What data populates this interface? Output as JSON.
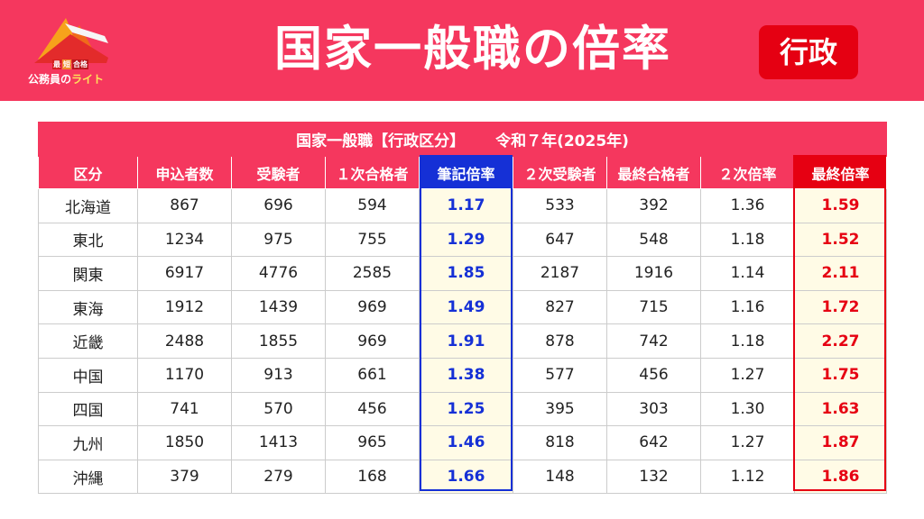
{
  "header": {
    "title": "国家一般職の倍率",
    "badge": "行政",
    "logo": {
      "badges": [
        "最",
        "短",
        "合格"
      ],
      "text_main": "公務員の",
      "text_accent": "ライト"
    },
    "colors": {
      "band": "#f5375e",
      "badge": "#e50012"
    }
  },
  "table": {
    "caption_main": "国家一般職【行政区分】",
    "caption_year": "令和７年(2025年)",
    "columns": [
      "区分",
      "申込者数",
      "受験者",
      "１次合格者",
      "筆記倍率",
      "２次受験者",
      "最終合格者",
      "２次倍率",
      "最終倍率"
    ],
    "rows": [
      [
        "北海道",
        "867",
        "696",
        "594",
        "1.17",
        "533",
        "392",
        "1.36",
        "1.59"
      ],
      [
        "東北",
        "1234",
        "975",
        "755",
        "1.29",
        "647",
        "548",
        "1.18",
        "1.52"
      ],
      [
        "関東",
        "6917",
        "4776",
        "2585",
        "1.85",
        "2187",
        "1916",
        "1.14",
        "2.11"
      ],
      [
        "東海",
        "1912",
        "1439",
        "969",
        "1.49",
        "827",
        "715",
        "1.16",
        "1.72"
      ],
      [
        "近畿",
        "2488",
        "1855",
        "969",
        "1.91",
        "878",
        "742",
        "1.18",
        "2.27"
      ],
      [
        "中国",
        "1170",
        "913",
        "661",
        "1.38",
        "577",
        "456",
        "1.27",
        "1.75"
      ],
      [
        "四国",
        "741",
        "570",
        "456",
        "1.25",
        "395",
        "303",
        "1.30",
        "1.63"
      ],
      [
        "九州",
        "1850",
        "1413",
        "965",
        "1.46",
        "818",
        "642",
        "1.27",
        "1.87"
      ],
      [
        "沖縄",
        "379",
        "279",
        "168",
        "1.66",
        "148",
        "132",
        "1.12",
        "1.86"
      ]
    ],
    "colors": {
      "header": "#f5375e",
      "written_ratio": "#1530d6",
      "final_ratio": "#e60012",
      "highlight_bg": "#fffbe6"
    }
  }
}
